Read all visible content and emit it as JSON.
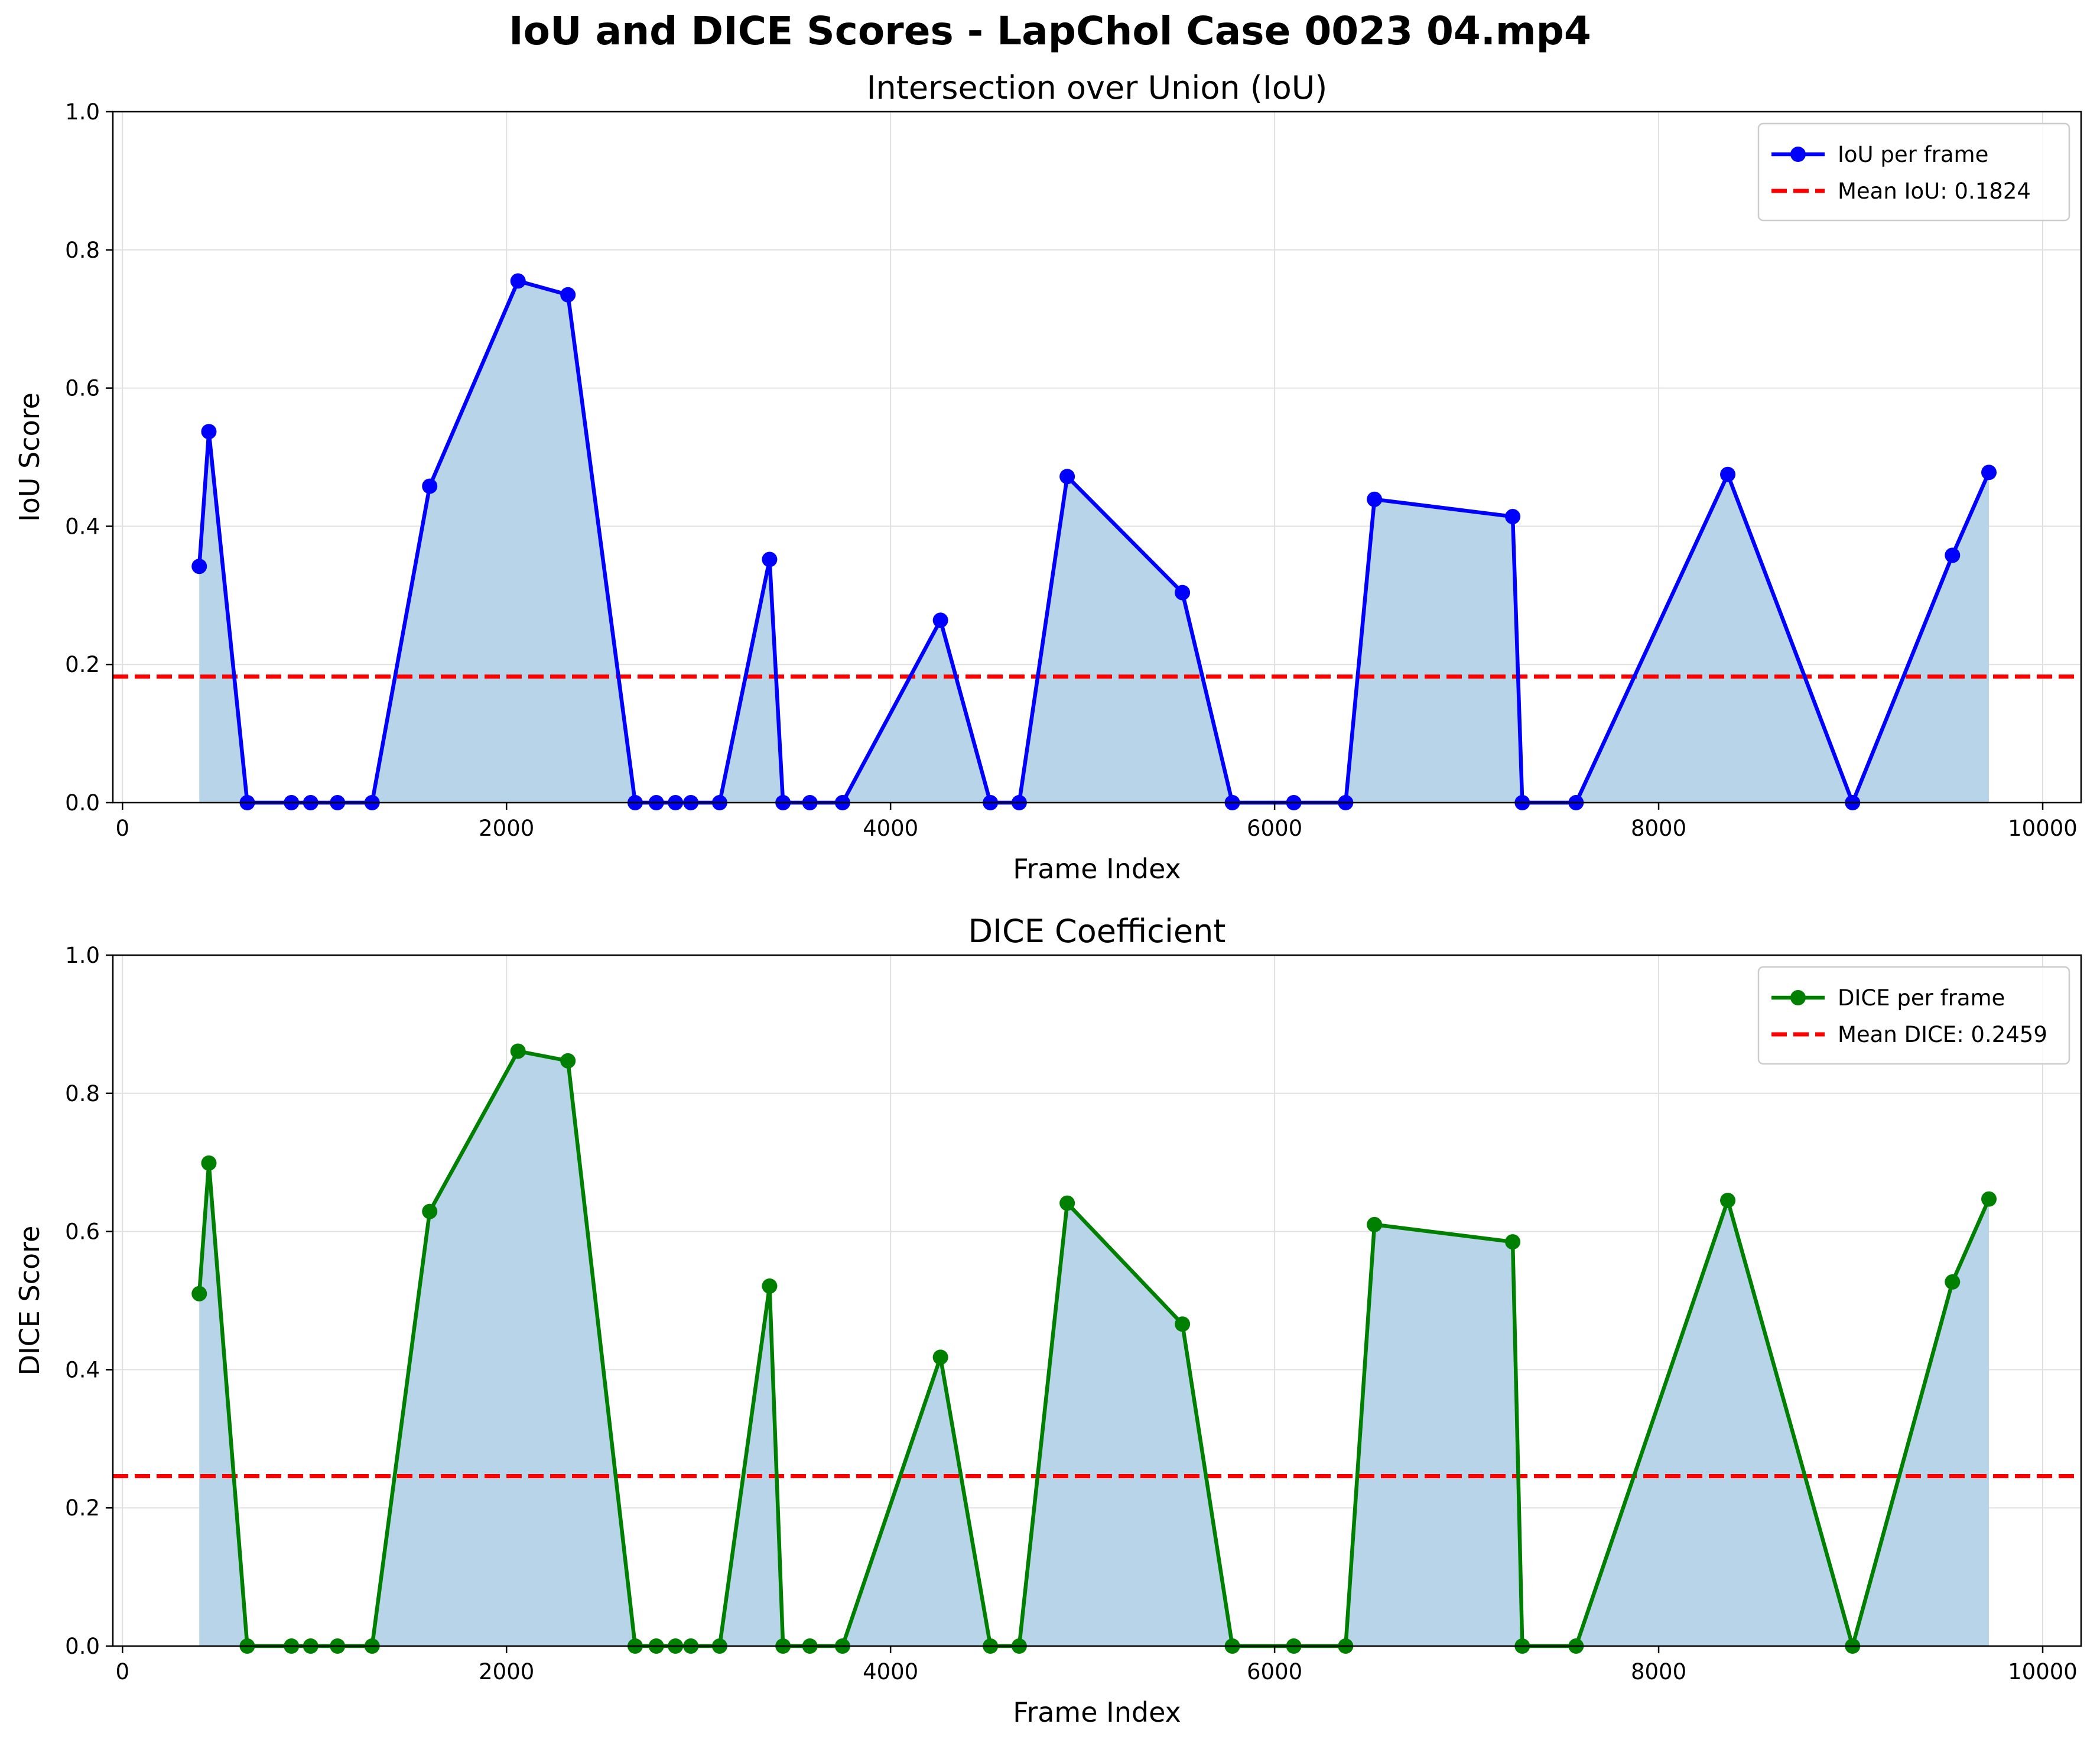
{
  "figure": {
    "title": "IoU and DICE Scores - LapChol Case 0023 04.mp4"
  },
  "colors": {
    "iou_line": "#0000ff",
    "dice_line": "#008000",
    "mean_line": "#ff0000",
    "fill": "#b8d4e8",
    "grid": "#e0e0e0"
  },
  "chart_data": [
    {
      "type": "line",
      "title": "Intersection over Union (IoU)",
      "xlabel": "Frame Index",
      "ylabel": "IoU Score",
      "xlim": [
        -50,
        10200
      ],
      "ylim": [
        0,
        1.0
      ],
      "xticks": [
        0,
        2000,
        4000,
        6000,
        8000,
        10000
      ],
      "yticks": [
        0.0,
        0.2,
        0.4,
        0.6,
        0.8,
        1.0
      ],
      "grid": true,
      "legend_position": "top-right",
      "series": [
        {
          "name": "IoU per frame",
          "x": [
            400,
            450,
            650,
            880,
            980,
            1120,
            1300,
            1600,
            2060,
            2320,
            2670,
            2780,
            2880,
            2960,
            3110,
            3370,
            3440,
            3580,
            3750,
            4260,
            4520,
            4670,
            4920,
            5520,
            5780,
            6100,
            6370,
            6520,
            7240,
            7290,
            7570,
            8360,
            9010,
            9530,
            9720
          ],
          "y": [
            0.342,
            0.537,
            0.0,
            0.0,
            0.0,
            0.0,
            0.0,
            0.458,
            0.755,
            0.735,
            0.0,
            0.0,
            0.0,
            0.0,
            0.0,
            0.352,
            0.0,
            0.0,
            0.0,
            0.264,
            0.0,
            0.0,
            0.472,
            0.304,
            0.0,
            0.0,
            0.0,
            0.439,
            0.414,
            0.0,
            0.0,
            0.475,
            0.0,
            0.358,
            0.478
          ]
        }
      ],
      "mean": {
        "name": "Mean IoU: 0.1824",
        "value": 0.1824
      }
    },
    {
      "type": "line",
      "title": "DICE Coefficient",
      "xlabel": "Frame Index",
      "ylabel": "DICE Score",
      "xlim": [
        -50,
        10200
      ],
      "ylim": [
        0,
        1.0
      ],
      "xticks": [
        0,
        2000,
        4000,
        6000,
        8000,
        10000
      ],
      "yticks": [
        0.0,
        0.2,
        0.4,
        0.6,
        0.8,
        1.0
      ],
      "grid": true,
      "legend_position": "top-right",
      "series": [
        {
          "name": "DICE per frame",
          "x": [
            400,
            450,
            650,
            880,
            980,
            1120,
            1300,
            1600,
            2060,
            2320,
            2670,
            2780,
            2880,
            2960,
            3110,
            3370,
            3440,
            3580,
            3750,
            4260,
            4520,
            4670,
            4920,
            5520,
            5780,
            6100,
            6370,
            6520,
            7240,
            7290,
            7570,
            8360,
            9010,
            9530,
            9720
          ],
          "y": [
            0.51,
            0.699,
            0.0,
            0.0,
            0.0,
            0.0,
            0.0,
            0.629,
            0.861,
            0.847,
            0.0,
            0.0,
            0.0,
            0.0,
            0.0,
            0.521,
            0.0,
            0.0,
            0.0,
            0.418,
            0.0,
            0.0,
            0.641,
            0.466,
            0.0,
            0.0,
            0.0,
            0.61,
            0.585,
            0.0,
            0.0,
            0.645,
            0.0,
            0.527,
            0.647
          ]
        }
      ],
      "mean": {
        "name": "Mean DICE: 0.2459",
        "value": 0.2459
      }
    }
  ]
}
